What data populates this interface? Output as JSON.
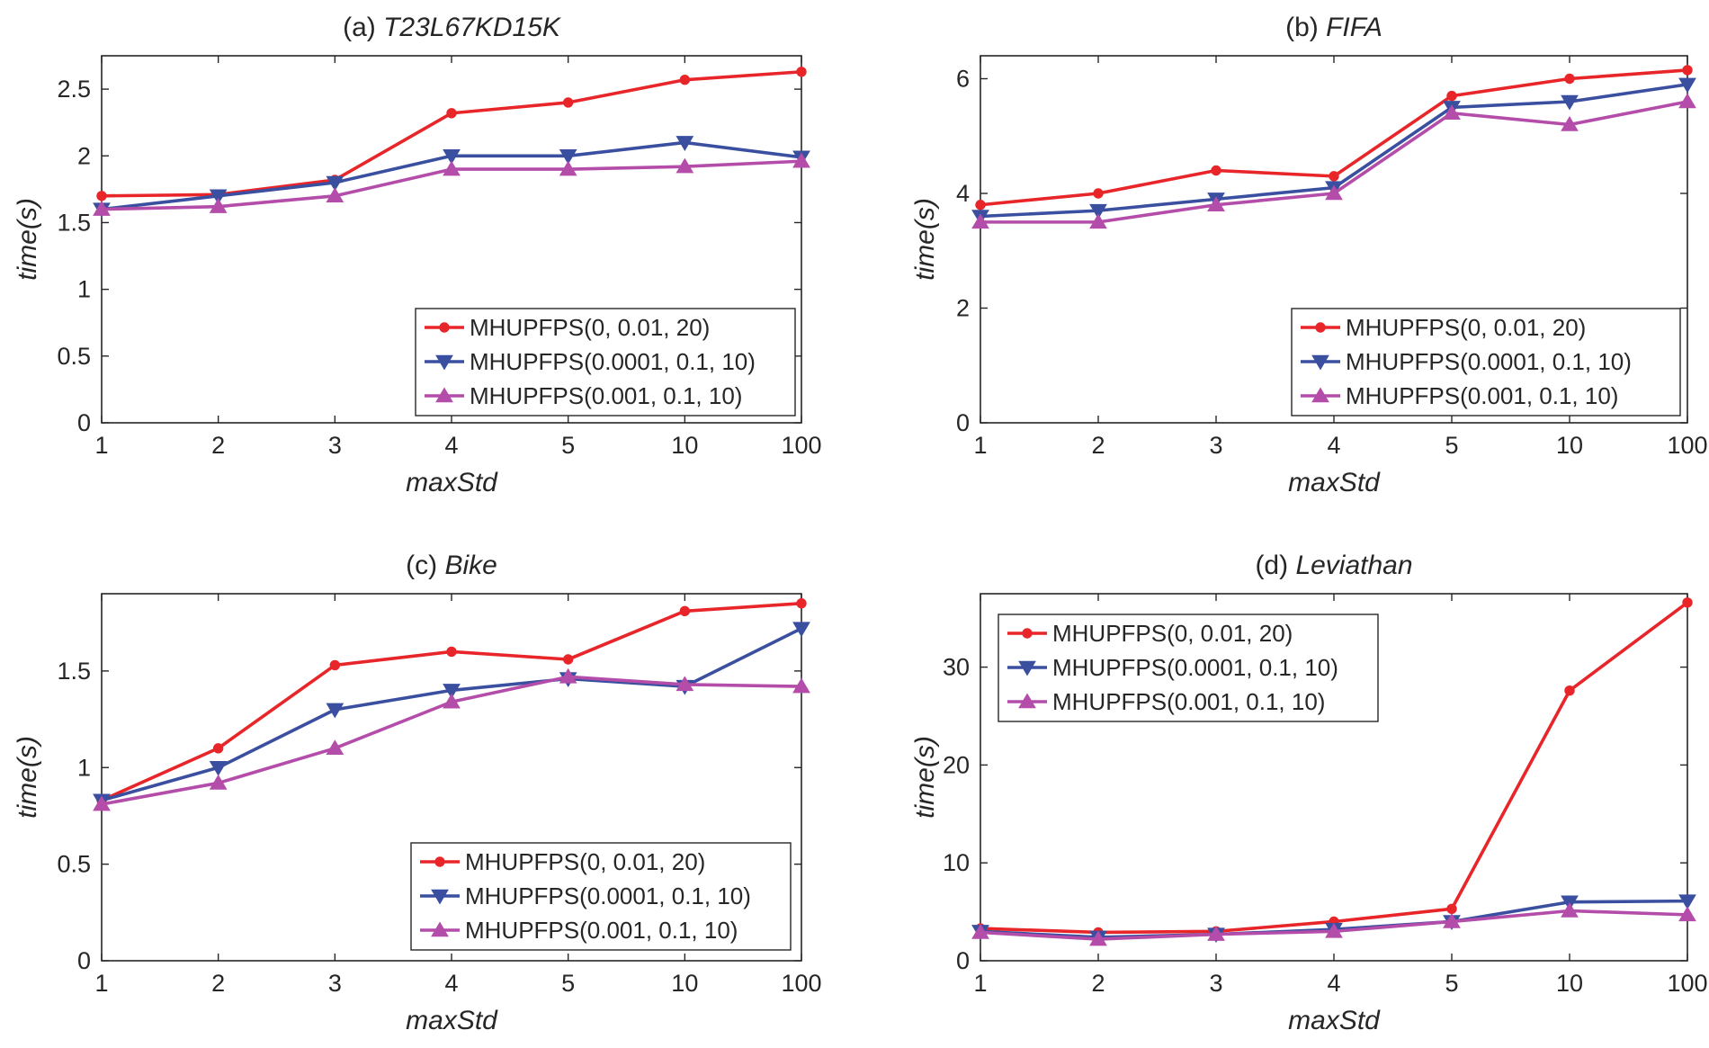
{
  "chart_data": [
    {
      "type": "line",
      "title_prefix": "(a)",
      "title": "T23L67KD15K",
      "xlabel": "maxStd",
      "ylabel": "time(s)",
      "categories": [
        "1",
        "2",
        "3",
        "4",
        "5",
        "10",
        "100"
      ],
      "ylim": [
        0,
        2.75
      ],
      "yticks": [
        0,
        0.5,
        1,
        1.5,
        2,
        2.5
      ],
      "ytick_labels": [
        "0",
        "0.5",
        "1",
        "1.5",
        "2",
        "2.5"
      ],
      "grid": false,
      "legend_position": "bottom-right",
      "series": [
        {
          "name": "MHUPFPS(0, 0.01, 20)",
          "color": "#e8262a",
          "marker": "dot",
          "values": [
            1.7,
            1.71,
            1.82,
            2.32,
            2.4,
            2.57,
            2.63
          ]
        },
        {
          "name": "MHUPFPS(0.0001, 0.1, 10)",
          "color": "#3a4fa0",
          "marker": "triangle-down",
          "values": [
            1.6,
            1.7,
            1.8,
            2.0,
            2.0,
            2.1,
            1.99
          ]
        },
        {
          "name": "MHUPFPS(0.001, 0.1, 10)",
          "color": "#b44da9",
          "marker": "triangle-up",
          "values": [
            1.6,
            1.62,
            1.7,
            1.9,
            1.9,
            1.92,
            1.96
          ]
        }
      ]
    },
    {
      "type": "line",
      "title_prefix": "(b)",
      "title": "FIFA",
      "xlabel": "maxStd",
      "ylabel": "time(s)",
      "categories": [
        "1",
        "2",
        "3",
        "4",
        "5",
        "10",
        "100"
      ],
      "ylim": [
        0,
        6.4
      ],
      "yticks": [
        0,
        2,
        4,
        6
      ],
      "ytick_labels": [
        "0",
        "2",
        "4",
        "6"
      ],
      "grid": false,
      "legend_position": "bottom-right",
      "series": [
        {
          "name": "MHUPFPS(0, 0.01, 20)",
          "color": "#e8262a",
          "marker": "dot",
          "values": [
            3.8,
            4.0,
            4.4,
            4.3,
            5.7,
            6.0,
            6.15
          ]
        },
        {
          "name": "MHUPFPS(0.0001, 0.1, 10)",
          "color": "#3a4fa0",
          "marker": "triangle-down",
          "values": [
            3.6,
            3.7,
            3.9,
            4.1,
            5.5,
            5.6,
            5.9
          ]
        },
        {
          "name": "MHUPFPS(0.001, 0.1, 10)",
          "color": "#b44da9",
          "marker": "triangle-up",
          "values": [
            3.5,
            3.5,
            3.8,
            4.0,
            5.4,
            5.2,
            5.6
          ]
        }
      ]
    },
    {
      "type": "line",
      "title_prefix": "(c)",
      "title": "Bike",
      "xlabel": "maxStd",
      "ylabel": "time(s)",
      "categories": [
        "1",
        "2",
        "3",
        "4",
        "5",
        "10",
        "100"
      ],
      "ylim": [
        0,
        1.9
      ],
      "yticks": [
        0,
        0.5,
        1,
        1.5
      ],
      "ytick_labels": [
        "0",
        "0.5",
        "1",
        "1.5"
      ],
      "grid": false,
      "legend_position": "bottom-right",
      "series": [
        {
          "name": "MHUPFPS(0, 0.01, 20)",
          "color": "#e8262a",
          "marker": "dot",
          "values": [
            0.83,
            1.1,
            1.53,
            1.6,
            1.56,
            1.81,
            1.85
          ]
        },
        {
          "name": "MHUPFPS(0.0001, 0.1, 10)",
          "color": "#3a4fa0",
          "marker": "triangle-down",
          "values": [
            0.83,
            1.0,
            1.3,
            1.4,
            1.46,
            1.42,
            1.72
          ]
        },
        {
          "name": "MHUPFPS(0.001, 0.1, 10)",
          "color": "#b44da9",
          "marker": "triangle-up",
          "values": [
            0.81,
            0.92,
            1.1,
            1.34,
            1.47,
            1.43,
            1.42
          ]
        }
      ]
    },
    {
      "type": "line",
      "title_prefix": "(d)",
      "title": "Leviathan",
      "xlabel": "maxStd",
      "ylabel": "time(s)",
      "categories": [
        "1",
        "2",
        "3",
        "4",
        "5",
        "10",
        "100"
      ],
      "ylim": [
        0,
        37.5
      ],
      "yticks": [
        0,
        10,
        20,
        30
      ],
      "ytick_labels": [
        "0",
        "10",
        "20",
        "30"
      ],
      "grid": false,
      "legend_position": "top-left",
      "series": [
        {
          "name": "MHUPFPS(0, 0.01, 20)",
          "color": "#e8262a",
          "marker": "dot",
          "values": [
            3.3,
            2.9,
            3.0,
            4.0,
            5.3,
            27.6,
            36.6
          ]
        },
        {
          "name": "MHUPFPS(0.0001, 0.1, 10)",
          "color": "#3a4fa0",
          "marker": "triangle-down",
          "values": [
            3.0,
            2.4,
            2.7,
            3.2,
            4.0,
            6.0,
            6.1
          ]
        },
        {
          "name": "MHUPFPS(0.001, 0.1, 10)",
          "color": "#b44da9",
          "marker": "triangle-up",
          "values": [
            2.9,
            2.2,
            2.7,
            3.0,
            4.0,
            5.1,
            4.7
          ]
        }
      ]
    }
  ]
}
